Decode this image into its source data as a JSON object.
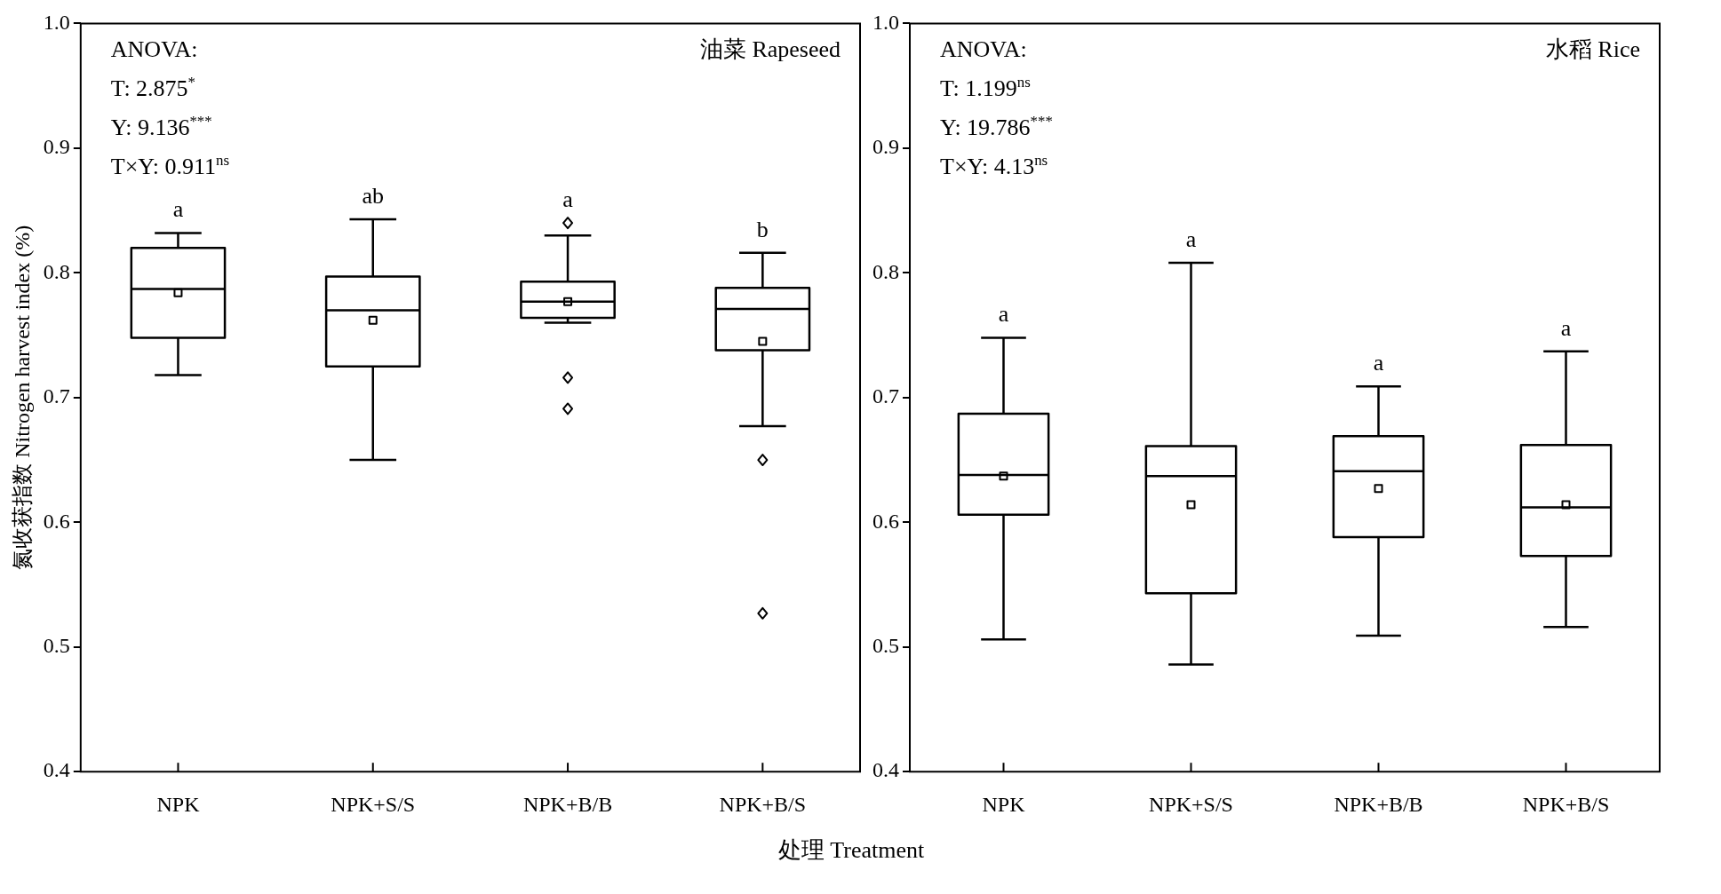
{
  "chart_data": [
    {
      "type": "box",
      "title": "油菜 Rapeseed",
      "ylabel": "氮收获指数 Nitrogen harvest index (%)",
      "xlabel": "处理 Treatment",
      "categories": [
        "NPK",
        "NPK+S/S",
        "NPK+B/B",
        "NPK+B/S"
      ],
      "ylim": [
        0.4,
        1.0
      ],
      "yticks": [
        0.4,
        0.5,
        0.6,
        0.7,
        0.8,
        0.9,
        {
          "value": 1.0,
          "label": "1.0"
        }
      ],
      "boxes": [
        {
          "low": 0.718,
          "q1": 0.748,
          "median": 0.787,
          "q3": 0.82,
          "high": 0.832,
          "mean": 0.784
        },
        {
          "low": 0.65,
          "q1": 0.725,
          "median": 0.77,
          "q3": 0.797,
          "high": 0.843,
          "mean": 0.762
        },
        {
          "low": 0.76,
          "q1": 0.764,
          "median": 0.777,
          "q3": 0.793,
          "high": 0.83,
          "mean": 0.777,
          "outliers": [
            0.84,
            0.716,
            0.691
          ]
        },
        {
          "low": 0.677,
          "q1": 0.738,
          "median": 0.771,
          "q3": 0.788,
          "high": 0.816,
          "mean": 0.745,
          "outliers": [
            0.65,
            0.527
          ]
        }
      ],
      "annotations": [
        "ANOVA:",
        "T: 2.875$^{*}$",
        "Y: 9.136$^{***}$",
        "T×Y: 0.911$^{ns}$",
        "a",
        "ab",
        "a",
        "b"
      ]
    },
    {
      "type": "box",
      "title": "水稻 Rice",
      "categories": [
        "NPK",
        "NPK+S/S",
        "NPK+B/B",
        "NPK+B/S"
      ],
      "ylim": [
        0.4,
        1.0
      ],
      "yticks": [
        0.4,
        0.5,
        0.6,
        0.7,
        0.8,
        0.9,
        {
          "value": 1.0,
          "label": "1.0"
        }
      ],
      "boxes": [
        {
          "low": 0.506,
          "q1": 0.606,
          "median": 0.638,
          "q3": 0.687,
          "high": 0.748,
          "mean": 0.637
        },
        {
          "low": 0.486,
          "q1": 0.543,
          "median": 0.637,
          "q3": 0.661,
          "high": 0.808,
          "mean": 0.614
        },
        {
          "low": 0.509,
          "q1": 0.588,
          "median": 0.641,
          "q3": 0.669,
          "high": 0.709,
          "mean": 0.627
        },
        {
          "low": 0.516,
          "q1": 0.573,
          "median": 0.612,
          "q3": 0.662,
          "high": 0.737,
          "mean": 0.614
        }
      ],
      "annotations": [
        "ANOVA:",
        "T: 1.199$^{ns}$",
        "Y: 19.786$^{***}$",
        "T×Y: 4.13$^{ns}$",
        "a",
        "a",
        "a",
        "a"
      ]
    }
  ]
}
